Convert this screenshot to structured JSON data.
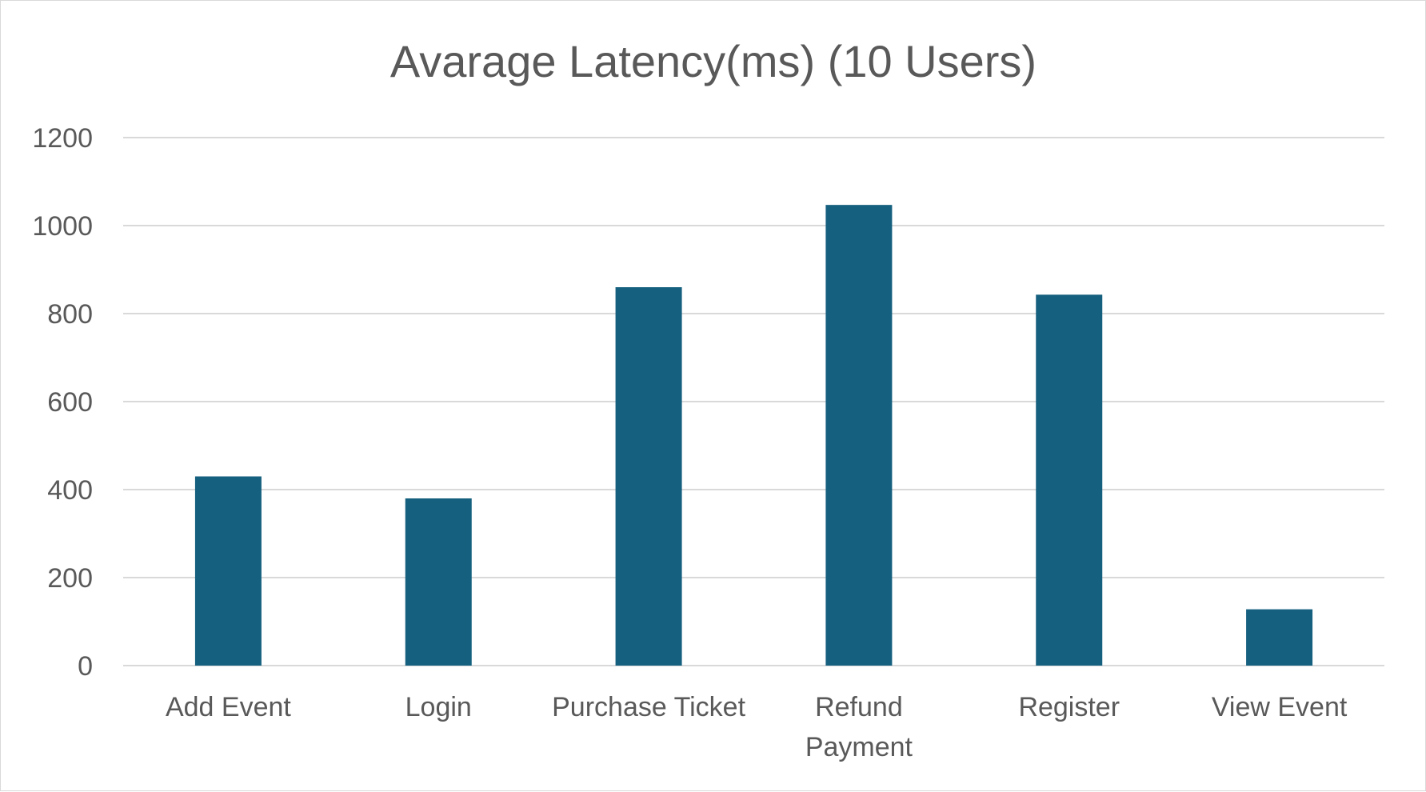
{
  "chart_data": {
    "type": "bar",
    "title": "Avarage Latency(ms) (10 Users)",
    "categories": [
      [
        "Add Event"
      ],
      [
        "Login"
      ],
      [
        "Purchase Ticket"
      ],
      [
        "Refund",
        "Payment"
      ],
      [
        "Register"
      ],
      [
        "View Event"
      ]
    ],
    "values": [
      430,
      380,
      860,
      1047,
      843,
      128
    ],
    "ylim": [
      0,
      1200
    ],
    "yticks": [
      0,
      200,
      400,
      600,
      800,
      1000,
      1200
    ],
    "grid": true,
    "legend": "none",
    "bar_color": "#16607f"
  }
}
